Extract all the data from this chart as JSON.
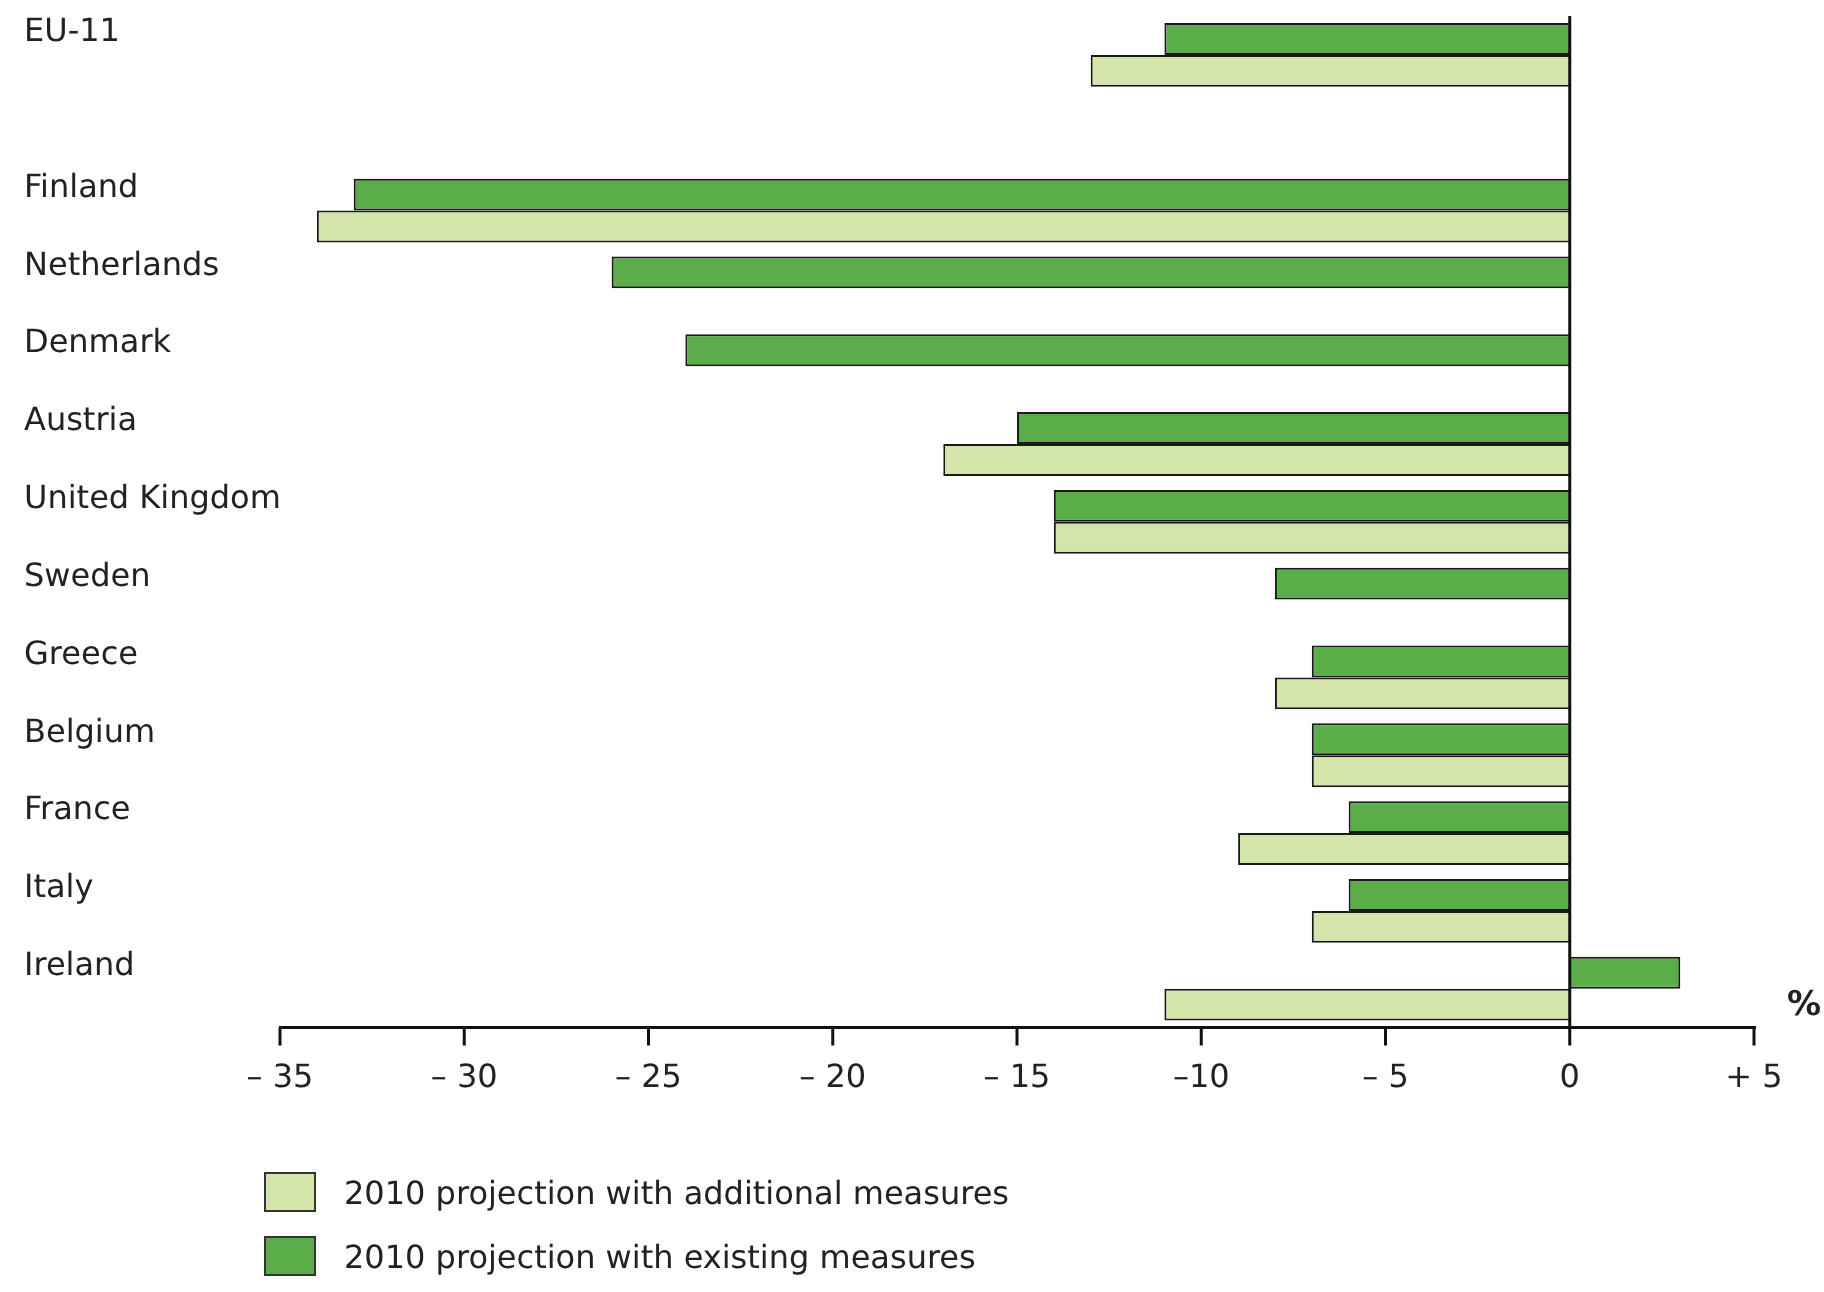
{
  "chart_data": {
    "type": "bar",
    "orientation": "horizontal",
    "xlabel": "%",
    "categories": [
      "EU-11",
      null,
      "Finland",
      "Netherlands",
      "Denmark",
      "Austria",
      "United Kingdom",
      "Sweden",
      "Greece",
      "Belgium",
      "France",
      "Italy",
      "Ireland"
    ],
    "series": [
      {
        "name": "2010 projection with additional measures",
        "color": "#d3e5a8",
        "values": [
          -13,
          null,
          -34,
          null,
          null,
          -17,
          -14,
          null,
          -8,
          -7,
          -9,
          -7,
          -11
        ]
      },
      {
        "name": "2010 projection with existing measures",
        "color": "#5aad48",
        "values": [
          -11,
          null,
          -33,
          -26,
          -24,
          -15,
          -14,
          -8,
          -7,
          -7,
          -6,
          -6,
          3
        ]
      }
    ],
    "xlim": [
      -35,
      5
    ],
    "xticks": [
      {
        "value": -35,
        "label": "– 35"
      },
      {
        "value": -30,
        "label": "– 30"
      },
      {
        "value": -25,
        "label": "– 25"
      },
      {
        "value": -20,
        "label": "– 20"
      },
      {
        "value": -15,
        "label": "– 15"
      },
      {
        "value": -10,
        "label": "–10"
      },
      {
        "value": -5,
        "label": "– 5"
      },
      0,
      {
        "value": 5,
        "label": "+ 5"
      }
    ],
    "ref_lines": [
      {
        "axis": "x",
        "value": 0
      }
    ],
    "grid": false,
    "legend": "bottom left"
  }
}
